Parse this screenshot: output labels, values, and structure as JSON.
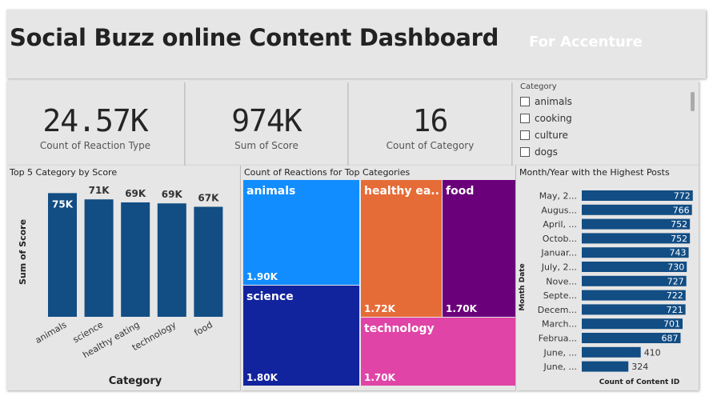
{
  "header": {
    "title": "Social Buzz online Content Dashboard",
    "subtitle": "For Accenture"
  },
  "kpis": [
    {
      "value": "24.57K",
      "label": "Count of Reaction Type"
    },
    {
      "value": "974K",
      "label": "Sum of Score"
    },
    {
      "value": "16",
      "label": "Count of Category"
    }
  ],
  "slicer": {
    "title": "Category",
    "items": [
      "animals",
      "cooking",
      "culture",
      "dogs"
    ]
  },
  "bar_chart": {
    "title": "Top 5 Category by Score",
    "xlabel": "Category",
    "ylabel": "Sum of Score",
    "bar_color": "#124d84",
    "categories": [
      "animals",
      "science",
      "healthy eating",
      "technology",
      "food"
    ],
    "value_labels": [
      "75K",
      "71K",
      "69K",
      "69K",
      "67K"
    ]
  },
  "treemap": {
    "title": "Count of Reactions for Top Categories",
    "tiles": [
      {
        "name": "animals",
        "label": "animals",
        "value_label": "1.90K",
        "color": "#118dff"
      },
      {
        "name": "science",
        "label": "science",
        "value_label": "1.80K",
        "color": "#12239e"
      },
      {
        "name": "healthy-eating",
        "label": "healthy ea...",
        "value_label": "1.72K",
        "color": "#e66c37"
      },
      {
        "name": "food",
        "label": "food",
        "value_label": "1.70K",
        "color": "#6b007b"
      },
      {
        "name": "technology",
        "label": "technology",
        "value_label": "1.70K",
        "color": "#e044a7"
      }
    ]
  },
  "hbar_chart": {
    "title": "Month/Year with the Highest Posts",
    "xlabel": "Count of Content ID",
    "ylabel": "Month Date",
    "bar_color": "#124d84",
    "labels": [
      "May, 2...",
      "Augus...",
      "April, ...",
      "Octob...",
      "Januar...",
      "July, 2...",
      "Nove...",
      "Septe...",
      "Decem...",
      "March...",
      "Februa...",
      "June, ...",
      "June, ..."
    ]
  },
  "chart_data": [
    {
      "type": "bar",
      "title": "Top 5 Category by Score",
      "categories": [
        "animals",
        "science",
        "healthy eating",
        "technology",
        "food"
      ],
      "values": [
        74965,
        71168,
        69339,
        68738,
        66676
      ],
      "xlabel": "Category",
      "ylabel": "Sum of Score",
      "ylim": [
        0,
        80000
      ]
    },
    {
      "type": "heatmap",
      "title": "Count of Reactions for Top Categories",
      "categories": [
        "animals",
        "science",
        "healthy eating",
        "food",
        "technology"
      ],
      "values": [
        1897,
        1796,
        1717,
        1699,
        1698
      ]
    },
    {
      "type": "bar",
      "orientation": "horizontal",
      "title": "Month/Year with the Highest Posts",
      "categories": [
        "May, 2...",
        "Augus...",
        "April, ...",
        "Octob...",
        "Januar...",
        "July, 2...",
        "Nove...",
        "Septe...",
        "Decem...",
        "March...",
        "Februa...",
        "June, ...",
        "June, ..."
      ],
      "values": [
        772,
        766,
        752,
        752,
        743,
        730,
        727,
        722,
        721,
        701,
        687,
        410,
        324
      ],
      "xlabel": "Count of Content ID",
      "ylabel": "Month Date",
      "xlim": [
        0,
        800
      ]
    }
  ]
}
